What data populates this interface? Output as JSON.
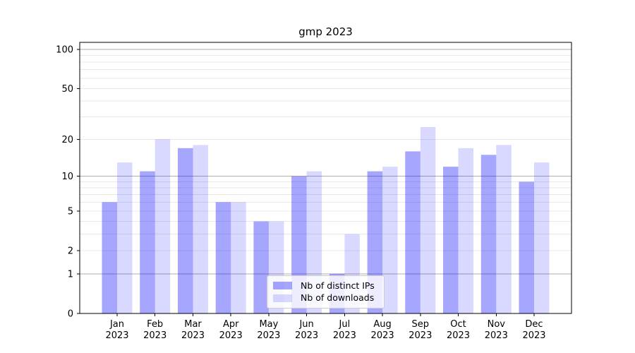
{
  "title": "gmp 2023",
  "chart_data": {
    "type": "bar",
    "title": "gmp 2023",
    "categories": [
      "Jan",
      "Feb",
      "Mar",
      "Apr",
      "May",
      "Jun",
      "Jul",
      "Aug",
      "Sep",
      "Oct",
      "Nov",
      "Dec"
    ],
    "year": "2023",
    "series": [
      {
        "name": "Nb of distinct IPs",
        "color": "rgba(0,0,255,0.35)",
        "values": [
          6,
          11,
          17,
          6,
          4,
          10,
          1,
          11,
          16,
          12,
          15,
          9
        ]
      },
      {
        "name": "Nb of downloads",
        "color": "rgba(0,0,255,0.15)",
        "values": [
          13,
          20,
          18,
          6,
          4,
          11,
          3,
          12,
          25,
          17,
          18,
          13
        ]
      }
    ],
    "yscale": "log10(1+x)",
    "yticks": [
      0,
      1,
      2,
      5,
      10,
      20,
      50,
      100
    ],
    "minor_gridlines": [
      3,
      4,
      6,
      7,
      8,
      9,
      30,
      40,
      60,
      70,
      80,
      90
    ],
    "decade_gridlines": [
      1,
      10,
      100
    ],
    "ylim": [
      0,
      113
    ],
    "xlabel": "",
    "ylabel": "",
    "grid": true,
    "legend_position": "lower center",
    "colors": {
      "grid_minor": "#e9e9e9",
      "grid_decade": "#aeaeae",
      "axis": "#000000",
      "text": "#000000",
      "background": "#ffffff"
    }
  }
}
